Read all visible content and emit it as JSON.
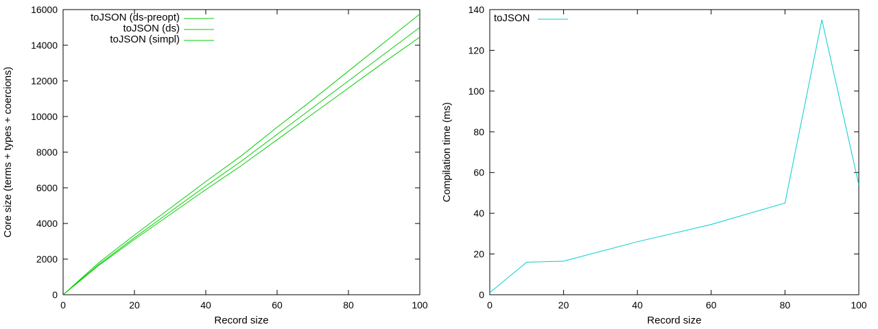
{
  "chart_data": [
    {
      "type": "line",
      "xlabel": "Record size",
      "ylabel": "Core size (terms + types + coercions)",
      "xlim": [
        0,
        100
      ],
      "ylim": [
        0,
        16000
      ],
      "xticks": [
        0,
        20,
        40,
        60,
        80,
        100
      ],
      "yticks": [
        0,
        2000,
        4000,
        6000,
        8000,
        10000,
        12000,
        14000,
        16000
      ],
      "tick_labels_x": [
        "0",
        "20",
        "40",
        "60",
        "80",
        "100"
      ],
      "tick_labels_y": [
        "0",
        "2000",
        "4000",
        "6000",
        "8000",
        "10000",
        "12000",
        "14000",
        "16000"
      ],
      "legend_position": "top-right",
      "grid": false,
      "series": [
        {
          "name": "toJSON (ds-preopt)",
          "color": "#00cc00",
          "x": [
            0,
            10,
            20,
            30,
            40,
            50,
            60,
            70,
            80,
            90,
            100
          ],
          "y": [
            0,
            1800,
            3350,
            4850,
            6350,
            7800,
            9400,
            10950,
            12550,
            14150,
            15750
          ]
        },
        {
          "name": "toJSON (ds)",
          "color": "#00cc00",
          "x": [
            0,
            10,
            20,
            30,
            40,
            50,
            60,
            70,
            80,
            90,
            100
          ],
          "y": [
            0,
            1700,
            3200,
            4650,
            6100,
            7500,
            9000,
            10500,
            12000,
            13500,
            15000
          ]
        },
        {
          "name": "toJSON (simpl)",
          "color": "#00cc00",
          "x": [
            0,
            10,
            20,
            30,
            40,
            50,
            60,
            70,
            80,
            90,
            100
          ],
          "y": [
            0,
            1650,
            3100,
            4500,
            5900,
            7250,
            8700,
            10150,
            11600,
            13050,
            14450
          ]
        }
      ]
    },
    {
      "type": "line",
      "xlabel": "Record size",
      "ylabel": "Compilation time (ms)",
      "xlim": [
        0,
        100
      ],
      "ylim": [
        0,
        140
      ],
      "xticks": [
        0,
        20,
        40,
        60,
        80,
        100
      ],
      "yticks": [
        0,
        20,
        40,
        60,
        80,
        100,
        120,
        140
      ],
      "tick_labels_x": [
        "0",
        "20",
        "40",
        "60",
        "80",
        "100"
      ],
      "tick_labels_y": [
        "0",
        "20",
        "40",
        "60",
        "80",
        "100",
        "120",
        "140"
      ],
      "legend_position": "top-left",
      "grid": false,
      "series": [
        {
          "name": "toJSON",
          "color": "#00cccc",
          "x": [
            0,
            10,
            20,
            40,
            60,
            80,
            90,
            100
          ],
          "y": [
            1,
            16,
            16.5,
            26,
            34.5,
            45,
            135,
            54
          ]
        }
      ]
    }
  ]
}
